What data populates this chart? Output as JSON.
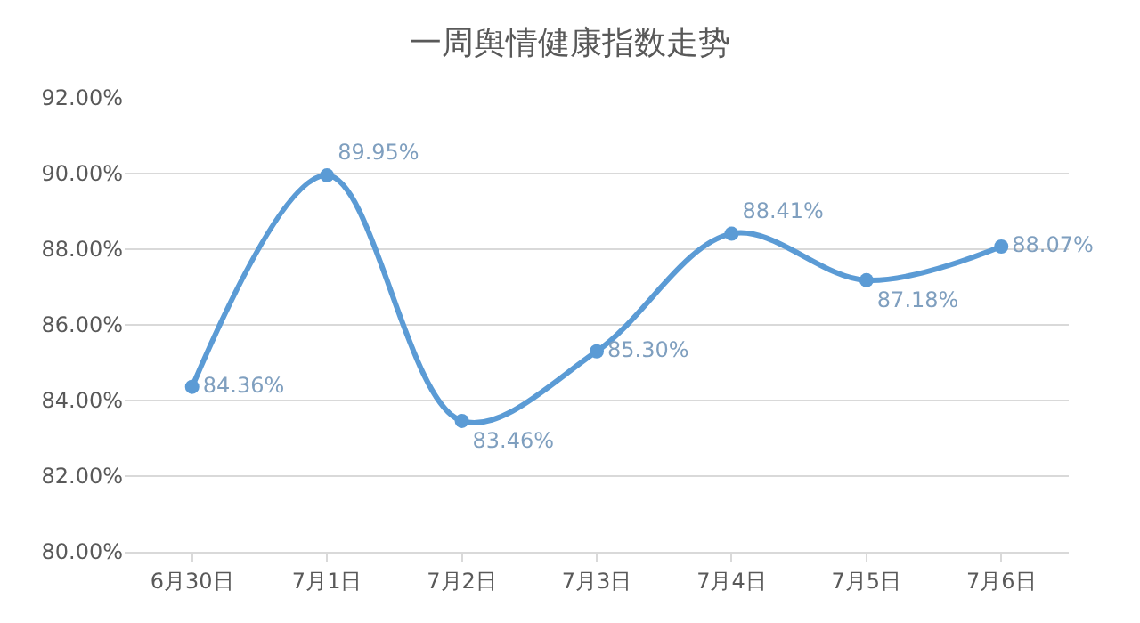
{
  "chart_data": {
    "type": "line",
    "title": "一周舆情健康指数走势",
    "categories": [
      "6月30日",
      "7月1日",
      "7月2日",
      "7月3日",
      "7月4日",
      "7月5日",
      "7月6日"
    ],
    "series": [
      {
        "color": "#5b9bd5",
        "values": [
          84.36,
          89.95,
          83.46,
          85.3,
          88.41,
          87.18,
          88.07
        ],
        "value_labels": [
          "84.36%",
          "89.95%",
          "83.46%",
          "85.30%",
          "88.41%",
          "87.18%",
          "88.07%"
        ]
      }
    ],
    "ylim": [
      80,
      92
    ],
    "yticks": [
      {
        "value": 80,
        "label": "80.00%"
      },
      {
        "value": 82,
        "label": "82.00%"
      },
      {
        "value": 84,
        "label": "84.00%"
      },
      {
        "value": 86,
        "label": "86.00%"
      },
      {
        "value": 88,
        "label": "88.00%"
      },
      {
        "value": 90,
        "label": "90.00%"
      },
      {
        "value": 92,
        "label": "92.00%"
      }
    ],
    "grid": "y",
    "marker": "circle",
    "line_style": "solid",
    "legend": false
  }
}
